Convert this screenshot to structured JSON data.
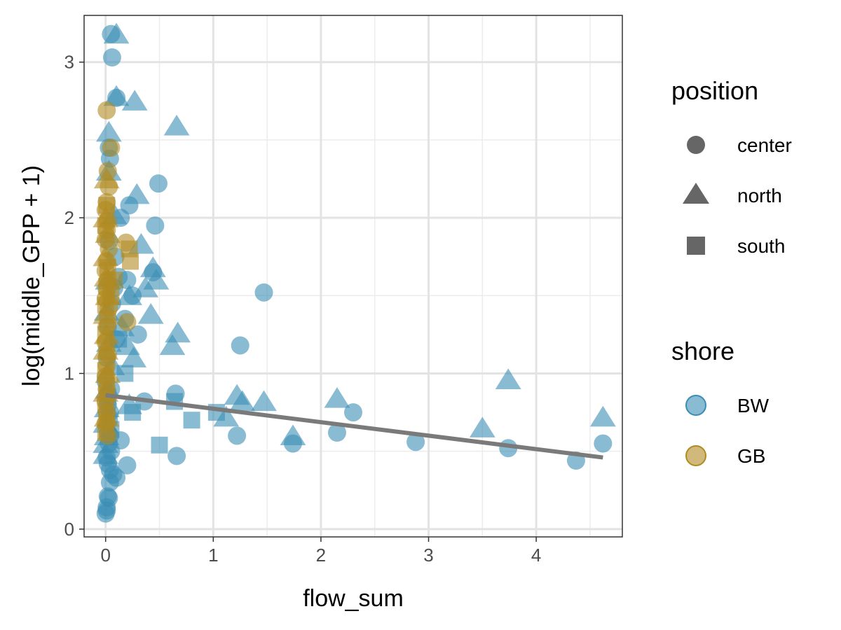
{
  "chart_data": {
    "type": "scatter",
    "xlabel": "flow_sum",
    "ylabel": "log(middle_GPP + 1)",
    "xlim": [
      -0.2,
      4.8
    ],
    "ylim": [
      -0.05,
      3.3
    ],
    "x_ticks": [
      0,
      1,
      2,
      3,
      4
    ],
    "x_tick_labels": [
      "0",
      "1",
      "2",
      "3",
      "4"
    ],
    "y_ticks": [
      0,
      1,
      2,
      3
    ],
    "y_tick_labels": [
      "0",
      "1",
      "2",
      "3"
    ],
    "grid": true,
    "legend": {
      "placement": "right",
      "position": {
        "title": "position",
        "entries": [
          {
            "label": "center",
            "shape": "circle"
          },
          {
            "label": "north",
            "shape": "triangle"
          },
          {
            "label": "south",
            "shape": "square"
          }
        ]
      },
      "shore": {
        "title": "shore",
        "entries": [
          {
            "label": "BW",
            "color": "#3a8db5"
          },
          {
            "label": "GB",
            "color": "#b08b22"
          }
        ]
      }
    },
    "colors": {
      "BW": "#3a8db5",
      "GB": "#b08b22",
      "trend": "#7a7a7a",
      "legend_shape": "#666666"
    },
    "trend_line": {
      "x": [
        0,
        4.62
      ],
      "y": [
        0.86,
        0.46
      ]
    },
    "series": [
      {
        "name": "BW",
        "points": [
          [
            0.05,
            3.18,
            "center"
          ],
          [
            0.06,
            3.03,
            "center"
          ],
          [
            0.1,
            2.77,
            "center"
          ],
          [
            0.03,
            2.45,
            "center"
          ],
          [
            0.04,
            2.38,
            "center"
          ],
          [
            0.49,
            2.22,
            "center"
          ],
          [
            0.22,
            2.08,
            "center"
          ],
          [
            0.14,
            2.0,
            "center"
          ],
          [
            0.46,
            1.95,
            "center"
          ],
          [
            1.47,
            1.52,
            "center"
          ],
          [
            0.44,
            1.65,
            "center"
          ],
          [
            0.12,
            1.62,
            "center"
          ],
          [
            0.08,
            1.55,
            "center"
          ],
          [
            0.18,
            1.35,
            "center"
          ],
          [
            0.3,
            1.25,
            "center"
          ],
          [
            1.25,
            1.18,
            "center"
          ],
          [
            0.1,
            1.22,
            "center"
          ],
          [
            0.65,
            0.87,
            "center"
          ],
          [
            0.36,
            0.82,
            "center"
          ],
          [
            0.05,
            0.9,
            "center"
          ],
          [
            0.02,
            0.8,
            "center"
          ],
          [
            0.03,
            0.7,
            "center"
          ],
          [
            0.02,
            0.62,
            "center"
          ],
          [
            0.04,
            0.6,
            "center"
          ],
          [
            0.14,
            0.57,
            "center"
          ],
          [
            0.03,
            0.55,
            "center"
          ],
          [
            0.05,
            0.5,
            "center"
          ],
          [
            0.01,
            0.46,
            "center"
          ],
          [
            0.2,
            0.41,
            "center"
          ],
          [
            0.02,
            0.42,
            "center"
          ],
          [
            0.04,
            0.38,
            "center"
          ],
          [
            0.07,
            0.35,
            "center"
          ],
          [
            0.1,
            0.33,
            "center"
          ],
          [
            0.04,
            0.3,
            "center"
          ],
          [
            0.02,
            0.21,
            "center"
          ],
          [
            0.03,
            0.2,
            "center"
          ],
          [
            0.01,
            0.14,
            "center"
          ],
          [
            0.01,
            0.12,
            "center"
          ],
          [
            0.0,
            0.1,
            "center"
          ],
          [
            0.66,
            0.47,
            "center"
          ],
          [
            1.22,
            0.6,
            "center"
          ],
          [
            1.74,
            0.55,
            "center"
          ],
          [
            2.15,
            0.62,
            "center"
          ],
          [
            2.3,
            0.75,
            "center"
          ],
          [
            2.88,
            0.56,
            "center"
          ],
          [
            3.74,
            0.52,
            "center"
          ],
          [
            4.37,
            0.44,
            "center"
          ],
          [
            4.62,
            0.55,
            "center"
          ],
          [
            0.03,
            1.85,
            "center"
          ],
          [
            0.06,
            1.45,
            "center"
          ],
          [
            0.09,
            1.75,
            "center"
          ],
          [
            0.2,
            1.6,
            "center"
          ],
          [
            0.25,
            1.5,
            "center"
          ],
          [
            0.01,
            1.1,
            "center"
          ],
          [
            0.02,
            1.3,
            "center"
          ],
          [
            0.0,
            0.95,
            "center"
          ],
          [
            0.04,
            0.75,
            "center"
          ],
          [
            0.1,
            3.18,
            "north"
          ],
          [
            0.27,
            2.75,
            "north"
          ],
          [
            0.1,
            2.78,
            "north"
          ],
          [
            0.66,
            2.59,
            "north"
          ],
          [
            0.03,
            2.55,
            "north"
          ],
          [
            0.03,
            2.3,
            "north"
          ],
          [
            0.29,
            2.15,
            "north"
          ],
          [
            0.08,
            2.02,
            "north"
          ],
          [
            0.33,
            1.83,
            "north"
          ],
          [
            0.44,
            1.68,
            "north"
          ],
          [
            0.47,
            1.6,
            "north"
          ],
          [
            0.37,
            1.55,
            "north"
          ],
          [
            0.22,
            1.5,
            "north"
          ],
          [
            0.42,
            1.38,
            "north"
          ],
          [
            0.67,
            1.26,
            "north"
          ],
          [
            0.62,
            1.18,
            "north"
          ],
          [
            0.2,
            1.18,
            "north"
          ],
          [
            0.26,
            1.1,
            "north"
          ],
          [
            0.06,
            1.05,
            "north"
          ],
          [
            1.22,
            0.86,
            "north"
          ],
          [
            1.27,
            0.82,
            "north"
          ],
          [
            1.47,
            0.82,
            "north"
          ],
          [
            1.12,
            0.72,
            "north"
          ],
          [
            1.74,
            0.6,
            "north"
          ],
          [
            2.15,
            0.84,
            "north"
          ],
          [
            3.5,
            0.65,
            "north"
          ],
          [
            3.74,
            0.96,
            "north"
          ],
          [
            4.62,
            0.72,
            "north"
          ],
          [
            0.22,
            0.8,
            "north"
          ],
          [
            0.02,
            0.9,
            "north"
          ],
          [
            0.01,
            0.78,
            "north"
          ],
          [
            0.0,
            0.68,
            "north"
          ],
          [
            0.01,
            0.6,
            "north"
          ],
          [
            0.0,
            0.55,
            "north"
          ],
          [
            0.0,
            0.48,
            "north"
          ],
          [
            0.02,
            1.6,
            "north"
          ],
          [
            0.01,
            1.4,
            "north"
          ],
          [
            0.03,
            1.2,
            "north"
          ],
          [
            0.15,
            1.3,
            "north"
          ],
          [
            0.64,
            0.82,
            "south"
          ],
          [
            0.8,
            0.7,
            "south"
          ],
          [
            1.03,
            0.75,
            "south"
          ],
          [
            0.5,
            0.54,
            "south"
          ],
          [
            0.25,
            0.75,
            "south"
          ],
          [
            0.18,
            1.0,
            "south"
          ],
          [
            0.12,
            1.22,
            "south"
          ],
          [
            0.05,
            0.64,
            "south"
          ],
          [
            0.02,
            0.85,
            "south"
          ]
        ]
      },
      {
        "name": "GB",
        "points": [
          [
            0.01,
            2.69,
            "center"
          ],
          [
            0.05,
            2.45,
            "center"
          ],
          [
            0.02,
            2.3,
            "center"
          ],
          [
            0.03,
            2.2,
            "center"
          ],
          [
            0.01,
            2.1,
            "center"
          ],
          [
            0.0,
            2.05,
            "center"
          ],
          [
            0.02,
            1.98,
            "center"
          ],
          [
            0.01,
            1.92,
            "center"
          ],
          [
            0.0,
            1.86,
            "center"
          ],
          [
            0.03,
            1.8,
            "center"
          ],
          [
            0.19,
            1.84,
            "center"
          ],
          [
            0.01,
            1.72,
            "center"
          ],
          [
            0.0,
            1.66,
            "center"
          ],
          [
            0.02,
            1.6,
            "center"
          ],
          [
            0.01,
            1.54,
            "center"
          ],
          [
            0.0,
            1.48,
            "center"
          ],
          [
            0.03,
            1.42,
            "center"
          ],
          [
            0.2,
            1.33,
            "center"
          ],
          [
            0.01,
            1.3,
            "center"
          ],
          [
            0.0,
            1.2,
            "center"
          ],
          [
            0.02,
            1.12,
            "center"
          ],
          [
            0.01,
            1.05,
            "center"
          ],
          [
            0.0,
            0.98,
            "center"
          ],
          [
            0.01,
            0.9,
            "center"
          ],
          [
            0.0,
            0.82,
            "center"
          ],
          [
            0.01,
            0.75,
            "center"
          ],
          [
            0.0,
            0.68,
            "center"
          ],
          [
            0.02,
            0.6,
            "center"
          ],
          [
            0.01,
            2.25,
            "north"
          ],
          [
            0.0,
            2.0,
            "north"
          ],
          [
            0.02,
            1.9,
            "north"
          ],
          [
            0.0,
            1.75,
            "north"
          ],
          [
            0.01,
            1.62,
            "north"
          ],
          [
            0.02,
            1.5,
            "north"
          ],
          [
            0.0,
            1.38,
            "north"
          ],
          [
            0.01,
            1.25,
            "north"
          ],
          [
            0.0,
            1.15,
            "north"
          ],
          [
            0.02,
            1.0,
            "north"
          ],
          [
            0.0,
            0.88,
            "north"
          ],
          [
            0.01,
            0.72,
            "north"
          ],
          [
            0.22,
            1.8,
            "south"
          ],
          [
            0.23,
            1.72,
            "south"
          ],
          [
            0.01,
            2.08,
            "south"
          ],
          [
            0.0,
            1.95,
            "south"
          ],
          [
            0.02,
            1.68,
            "south"
          ],
          [
            0.01,
            1.56,
            "south"
          ],
          [
            0.0,
            1.44,
            "south"
          ],
          [
            0.02,
            1.35,
            "south"
          ],
          [
            0.0,
            1.25,
            "south"
          ],
          [
            0.01,
            1.14,
            "south"
          ],
          [
            0.0,
            1.02,
            "south"
          ],
          [
            0.01,
            0.92,
            "south"
          ],
          [
            0.0,
            0.8,
            "south"
          ],
          [
            0.01,
            0.7,
            "south"
          ],
          [
            0.0,
            0.62,
            "south"
          ],
          [
            0.05,
            1.5,
            "south"
          ],
          [
            0.08,
            1.6,
            "south"
          ]
        ]
      }
    ]
  }
}
